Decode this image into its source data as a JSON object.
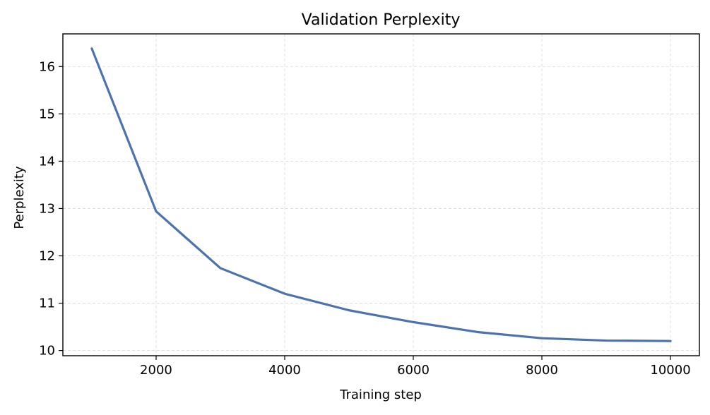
{
  "chart_data": {
    "type": "line",
    "title": "Validation Perplexity",
    "xlabel": "Training step",
    "ylabel": "Perplexity",
    "x": [
      1000,
      2000,
      3000,
      4000,
      5000,
      6000,
      7000,
      8000,
      9000,
      10000
    ],
    "series": [
      {
        "values": [
          16.38,
          12.94,
          11.74,
          11.2,
          10.85,
          10.6,
          10.39,
          10.26,
          10.21,
          10.2
        ]
      }
    ],
    "xlim": [
      550,
      10450
    ],
    "ylim": [
      9.89,
      16.69
    ],
    "xticks": [
      2000,
      4000,
      6000,
      8000,
      10000
    ],
    "yticks": [
      10,
      11,
      12,
      13,
      14,
      15,
      16
    ],
    "grid": true,
    "legend": "none",
    "colors": {
      "line": "#4c72b0",
      "grid": "#d9d9d9",
      "axes": "#000000"
    }
  }
}
